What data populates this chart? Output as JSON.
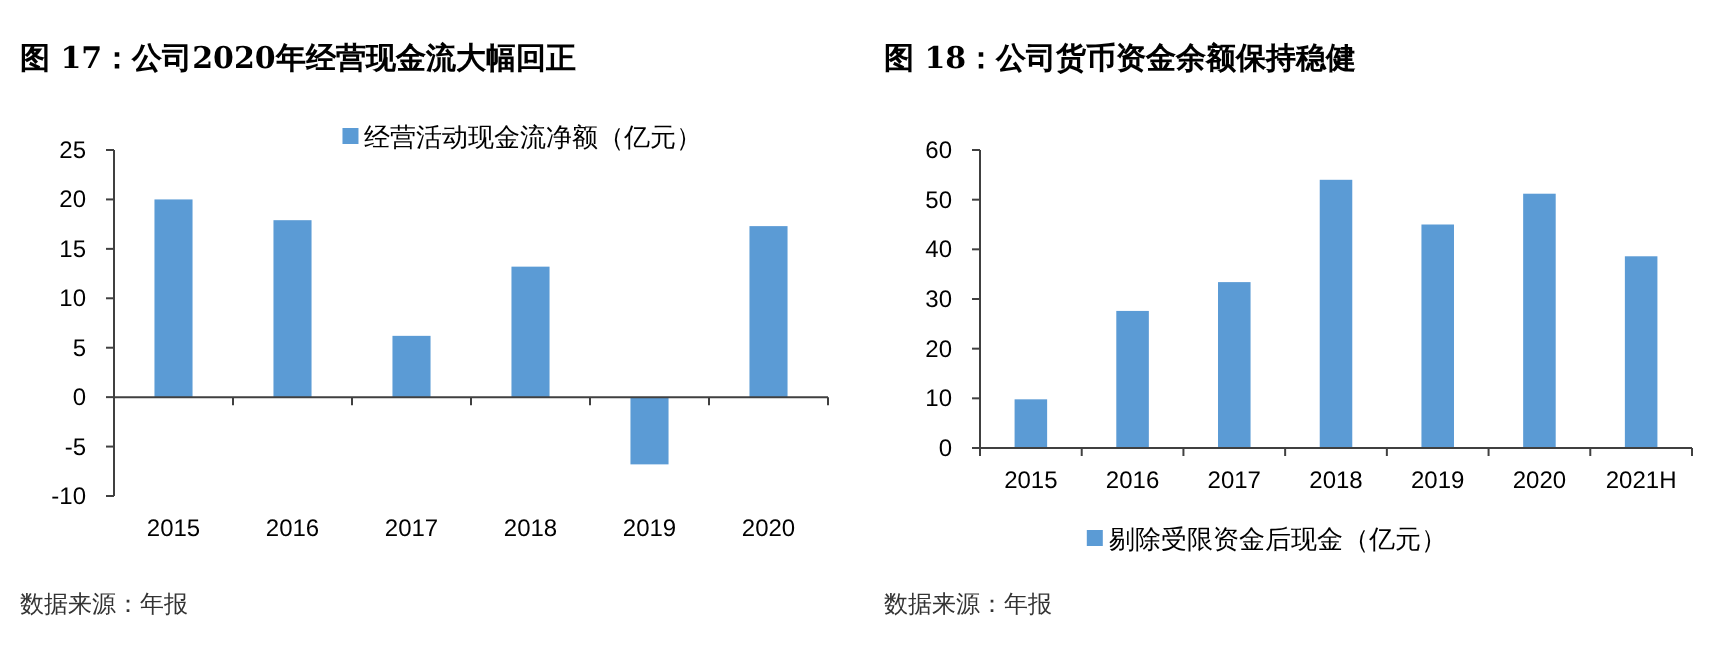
{
  "chart_data": [
    {
      "type": "bar",
      "title": "图 17：公司2020年经营现金流大幅回正",
      "categories": [
        "2015",
        "2016",
        "2017",
        "2018",
        "2019",
        "2020"
      ],
      "series": [
        {
          "name": "经营活动现金流净额（亿元）",
          "color": "#5b9bd5",
          "values": [
            20.0,
            17.9,
            6.2,
            13.2,
            -6.8,
            17.3
          ]
        }
      ],
      "ylim": [
        -10,
        25
      ],
      "yticks": [
        25,
        20,
        15,
        10,
        5,
        0,
        -5,
        -10
      ],
      "legend": "top",
      "annotations": [
        "数据来源：年报"
      ]
    },
    {
      "type": "bar",
      "title": "图 18：公司货币资金余额保持稳健",
      "categories": [
        "2015",
        "2016",
        "2017",
        "2018",
        "2019",
        "2020",
        "2021H"
      ],
      "series": [
        {
          "name": "剔除受限资金后现金（亿元）",
          "color": "#5b9bd5",
          "values": [
            9.8,
            27.6,
            33.4,
            54,
            45,
            51.2,
            38.6
          ]
        }
      ],
      "ylim": [
        0,
        60
      ],
      "yticks": [
        0,
        10,
        20,
        30,
        40,
        50,
        60
      ],
      "legend": "bottom",
      "annotations": [
        "数据来源：年报"
      ]
    }
  ]
}
